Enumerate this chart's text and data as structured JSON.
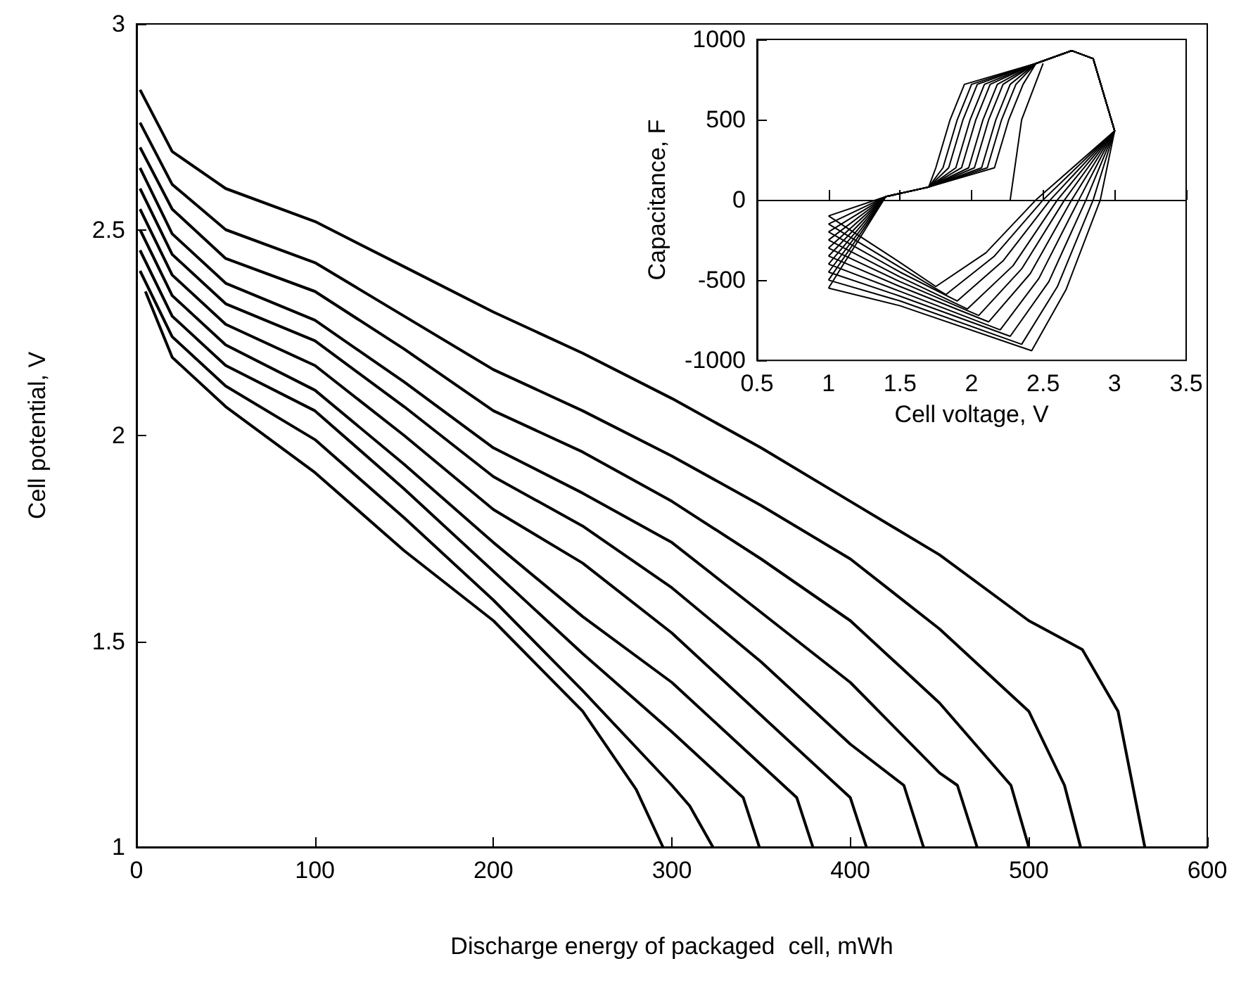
{
  "chart_data": [
    {
      "type": "line",
      "xlabel": "Discharge energy of packaged  cell, mWh",
      "ylabel": "Cell potential, V",
      "xlim": [
        0,
        600
      ],
      "ylim": [
        1,
        3
      ],
      "xticks": [
        0,
        100,
        200,
        300,
        400,
        500,
        600
      ],
      "yticks": [
        1,
        1.5,
        2,
        2.5,
        3
      ],
      "series": [
        {
          "color": "#000000",
          "x": [
            2,
            20,
            50,
            100,
            150,
            200,
            250,
            300,
            350,
            400,
            450,
            500,
            530,
            550,
            560,
            565
          ],
          "values": [
            2.84,
            2.69,
            2.6,
            2.52,
            2.41,
            2.3,
            2.2,
            2.09,
            1.97,
            1.84,
            1.71,
            1.55,
            1.48,
            1.33,
            1.11,
            1
          ]
        },
        {
          "color": "#000000",
          "x": [
            2,
            20,
            50,
            100,
            150,
            200,
            250,
            300,
            350,
            400,
            450,
            500,
            520,
            529
          ],
          "values": [
            2.76,
            2.61,
            2.5,
            2.42,
            2.29,
            2.16,
            2.06,
            1.95,
            1.83,
            1.7,
            1.53,
            1.33,
            1.15,
            1
          ]
        },
        {
          "color": "#000000",
          "x": [
            2,
            20,
            50,
            100,
            150,
            200,
            250,
            300,
            350,
            400,
            450,
            490,
            500
          ],
          "values": [
            2.7,
            2.55,
            2.43,
            2.35,
            2.21,
            2.06,
            1.96,
            1.84,
            1.7,
            1.55,
            1.35,
            1.15,
            1
          ]
        },
        {
          "color": "#000000",
          "x": [
            2,
            20,
            50,
            100,
            150,
            200,
            250,
            300,
            350,
            400,
            450,
            460,
            471
          ],
          "values": [
            2.65,
            2.49,
            2.37,
            2.28,
            2.13,
            1.97,
            1.86,
            1.74,
            1.57,
            1.4,
            1.18,
            1.15,
            1
          ]
        },
        {
          "color": "#000000",
          "x": [
            2,
            20,
            50,
            100,
            150,
            200,
            250,
            300,
            350,
            400,
            430,
            441
          ],
          "values": [
            2.6,
            2.44,
            2.32,
            2.23,
            2.07,
            1.9,
            1.78,
            1.63,
            1.45,
            1.25,
            1.15,
            1
          ]
        },
        {
          "color": "#000000",
          "x": [
            2,
            20,
            50,
            100,
            150,
            200,
            250,
            300,
            350,
            400,
            409
          ],
          "values": [
            2.55,
            2.39,
            2.27,
            2.17,
            2,
            1.82,
            1.69,
            1.52,
            1.32,
            1.12,
            1
          ]
        },
        {
          "color": "#000000",
          "x": [
            2,
            20,
            50,
            100,
            150,
            200,
            250,
            300,
            350,
            370,
            379
          ],
          "values": [
            2.5,
            2.34,
            2.22,
            2.11,
            1.93,
            1.74,
            1.56,
            1.4,
            1.2,
            1.12,
            1
          ]
        },
        {
          "color": "#000000",
          "x": [
            2,
            20,
            50,
            100,
            150,
            200,
            250,
            300,
            340,
            349
          ],
          "values": [
            2.45,
            2.29,
            2.17,
            2.06,
            1.87,
            1.67,
            1.47,
            1.28,
            1.12,
            1
          ]
        },
        {
          "color": "#000000",
          "x": [
            2,
            20,
            50,
            100,
            150,
            200,
            250,
            300,
            310,
            323
          ],
          "values": [
            2.4,
            2.24,
            2.12,
            1.99,
            1.8,
            1.6,
            1.38,
            1.15,
            1.1,
            1
          ]
        },
        {
          "color": "#000000",
          "x": [
            5,
            20,
            50,
            100,
            150,
            200,
            250,
            280,
            295
          ],
          "values": [
            2.35,
            2.19,
            2.07,
            1.91,
            1.72,
            1.55,
            1.33,
            1.14,
            1
          ]
        }
      ]
    },
    {
      "type": "line",
      "xlabel": "Cell voltage, V",
      "ylabel": "Capacitance, F",
      "xlim": [
        0.5,
        3.5
      ],
      "ylim": [
        -1000,
        1000
      ],
      "xticks": [
        0.5,
        1,
        1.5,
        2,
        2.5,
        3,
        3.5
      ],
      "yticks": [
        -1000,
        -500,
        0,
        500,
        1000
      ],
      "series": [
        {
          "color": "#000000",
          "x": [
            2.27,
            2.35,
            2.5
          ],
          "values": [
            0,
            500,
            850
          ]
        },
        {
          "color": "#000000",
          "x": [
            1,
            1.4,
            1.7,
            1.75,
            1.85,
            1.95,
            2.45,
            2.7,
            2.85,
            3,
            2.9,
            2.66,
            2.42,
            1.5,
            1
          ],
          "values": [
            -100,
            20,
            80,
            200,
            500,
            720,
            850,
            930,
            880,
            430,
            0,
            -560,
            -940,
            -660,
            -550
          ]
        },
        {
          "color": "#000000",
          "x": [
            1,
            1.4,
            1.7,
            1.8,
            1.9,
            2,
            2.45,
            2.7,
            2.85,
            3,
            2.85,
            2.6,
            2.35,
            1.5,
            1
          ],
          "values": [
            -150,
            20,
            80,
            200,
            500,
            720,
            850,
            930,
            880,
            430,
            0,
            -540,
            -900,
            -630,
            -500
          ]
        },
        {
          "color": "#000000",
          "x": [
            1,
            1.4,
            1.7,
            1.84,
            1.94,
            2.04,
            2.45,
            2.7,
            2.85,
            3,
            2.8,
            2.54,
            2.27,
            1.5,
            1
          ],
          "values": [
            -200,
            20,
            80,
            200,
            500,
            720,
            850,
            930,
            880,
            430,
            0,
            -510,
            -850,
            -600,
            -450
          ]
        },
        {
          "color": "#000000",
          "x": [
            1,
            1.4,
            1.7,
            1.89,
            1.99,
            2.09,
            2.45,
            2.7,
            2.85,
            3,
            2.75,
            2.47,
            2.2,
            1.5,
            1
          ],
          "values": [
            -250,
            20,
            80,
            200,
            500,
            720,
            850,
            930,
            880,
            430,
            0,
            -490,
            -810,
            -570,
            -400
          ]
        },
        {
          "color": "#000000",
          "x": [
            1,
            1.4,
            1.7,
            1.93,
            2.03,
            2.13,
            2.45,
            2.7,
            2.85,
            3,
            2.7,
            2.41,
            2.12,
            1.5,
            1
          ],
          "values": [
            -300,
            20,
            80,
            200,
            500,
            720,
            850,
            930,
            880,
            430,
            0,
            -460,
            -760,
            -540,
            -350
          ]
        },
        {
          "color": "#000000",
          "x": [
            1,
            1.4,
            1.7,
            1.98,
            2.08,
            2.18,
            2.45,
            2.7,
            2.85,
            3,
            2.65,
            2.35,
            2.05,
            1.5,
            1
          ],
          "values": [
            -350,
            20,
            80,
            200,
            500,
            720,
            850,
            930,
            880,
            430,
            0,
            -430,
            -720,
            -510,
            -300
          ]
        },
        {
          "color": "#000000",
          "x": [
            1,
            1.4,
            1.7,
            2.02,
            2.12,
            2.22,
            2.45,
            2.7,
            2.85,
            3,
            2.6,
            2.29,
            1.97,
            1.5,
            1
          ],
          "values": [
            -400,
            20,
            80,
            200,
            500,
            720,
            850,
            930,
            880,
            430,
            0,
            -410,
            -680,
            -480,
            -250
          ]
        },
        {
          "color": "#000000",
          "x": [
            1,
            1.4,
            1.7,
            2.07,
            2.17,
            2.27,
            2.45,
            2.7,
            2.85,
            3,
            2.55,
            2.22,
            1.9,
            1.5,
            1
          ],
          "values": [
            -450,
            20,
            80,
            200,
            500,
            720,
            850,
            930,
            880,
            430,
            0,
            -380,
            -630,
            -450,
            -200
          ]
        },
        {
          "color": "#000000",
          "x": [
            1,
            1.4,
            1.7,
            2.11,
            2.21,
            2.31,
            2.45,
            2.7,
            2.85,
            3,
            2.5,
            2.16,
            1.82,
            1.5,
            1
          ],
          "values": [
            -500,
            20,
            80,
            200,
            500,
            720,
            850,
            930,
            880,
            430,
            0,
            -350,
            -590,
            -420,
            -150
          ]
        },
        {
          "color": "#000000",
          "x": [
            1,
            1.4,
            1.7,
            2.16,
            2.26,
            2.36,
            2.45,
            2.7,
            2.85,
            3,
            2.45,
            2.1,
            1.75,
            1.5,
            1
          ],
          "values": [
            -550,
            20,
            80,
            200,
            500,
            720,
            850,
            930,
            880,
            430,
            0,
            -330,
            -540,
            -390,
            -100
          ]
        }
      ]
    }
  ]
}
